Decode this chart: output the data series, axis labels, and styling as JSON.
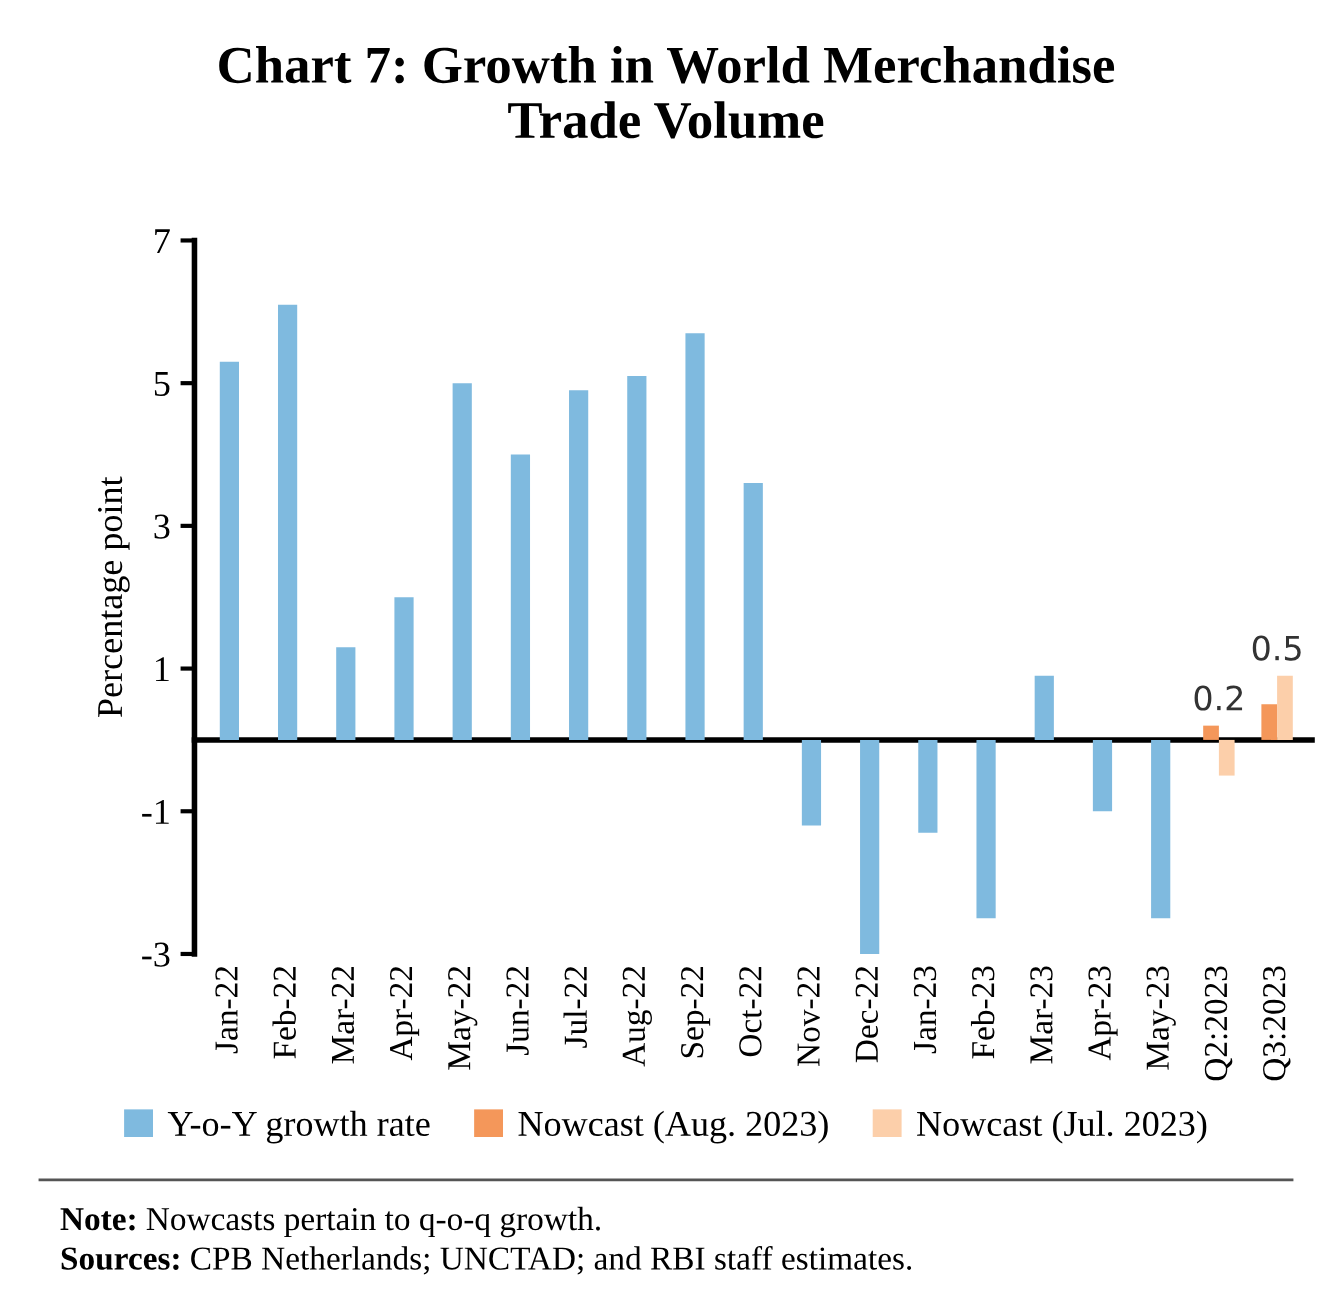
{
  "chart_data": {
    "type": "bar",
    "title": "Chart 7: Growth in World Merchandise\nTrade Volume",
    "ylabel": "Percentage point",
    "categories": [
      "Jan-22",
      "Feb-22",
      "Mar-22",
      "Apr-22",
      "May-22",
      "Jun-22",
      "Jul-22",
      "Aug-22",
      "Sep-22",
      "Oct-22",
      "Nov-22",
      "Dec-22",
      "Jan-23",
      "Feb-23",
      "Mar-23",
      "Apr-23",
      "May-23",
      "Q2:2023",
      "Q3:2023"
    ],
    "series": [
      {
        "name": "Y-o-Y growth rate",
        "color": "#7fbadf",
        "values": [
          5.3,
          6.1,
          1.3,
          2.0,
          5.0,
          4.0,
          4.9,
          5.1,
          5.7,
          3.6,
          -1.2,
          -3.0,
          -1.3,
          -2.5,
          0.9,
          -1.0,
          -2.5,
          null,
          null
        ]
      },
      {
        "name": "Nowcast (Aug. 2023)",
        "color": "#f4975a",
        "values": [
          null,
          null,
          null,
          null,
          null,
          null,
          null,
          null,
          null,
          null,
          null,
          null,
          null,
          null,
          null,
          null,
          null,
          0.2,
          0.5
        ],
        "value_labels": [
          null,
          null,
          null,
          null,
          null,
          null,
          null,
          null,
          null,
          null,
          null,
          null,
          null,
          null,
          null,
          null,
          null,
          "0.2",
          "0.5"
        ]
      },
      {
        "name": "Nowcast (Jul. 2023)",
        "color": "#fccfaa",
        "values": [
          null,
          null,
          null,
          null,
          null,
          null,
          null,
          null,
          null,
          null,
          null,
          null,
          null,
          null,
          null,
          null,
          null,
          -0.5,
          0.9
        ]
      }
    ],
    "ylim": [
      -3,
      7
    ],
    "yticks": [
      {
        "value": -3,
        "label": "-3"
      },
      {
        "value": -1,
        "label": "-1"
      },
      1,
      3,
      5,
      7
    ],
    "grid": false,
    "legend": "bottom",
    "annotations": [
      "Note: Nowcasts pertain to q-o-q growth.",
      "Sources: CPB Netherlands; UNCTAD; and RBI staff estimates."
    ]
  }
}
